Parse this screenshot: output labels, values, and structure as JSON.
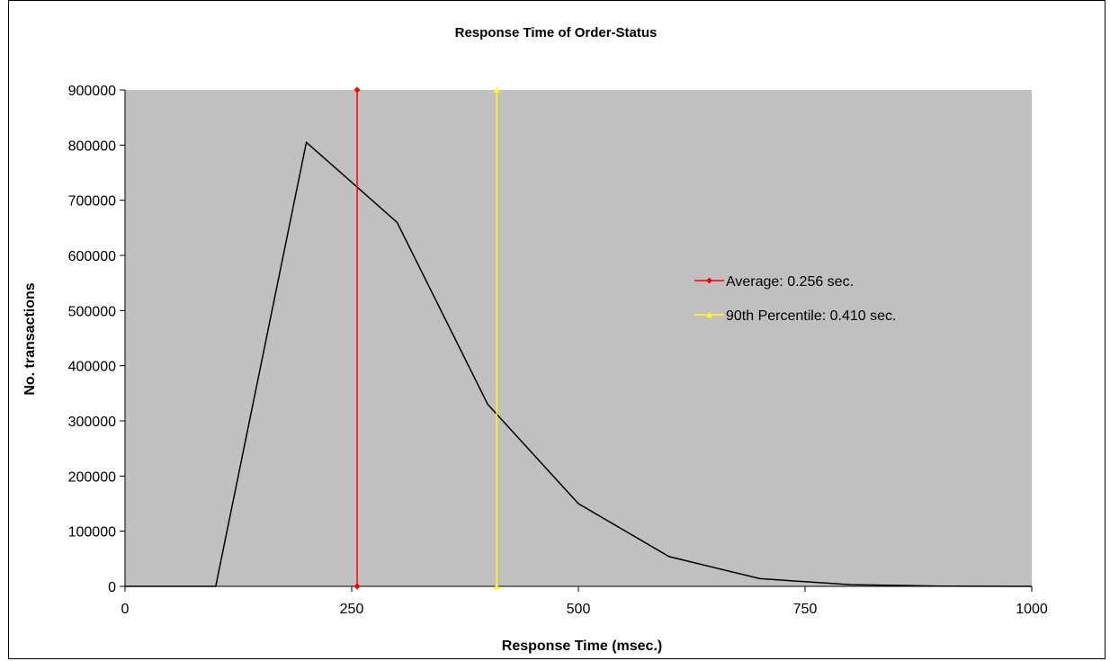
{
  "chart_data": {
    "type": "line",
    "title": "Response Time of Order-Status",
    "xlabel": "Response Time (msec.)",
    "ylabel": "No. transactions",
    "xlim": [
      0,
      1000
    ],
    "ylim": [
      0,
      900000
    ],
    "x_ticks": [
      "0",
      "250",
      "500",
      "750",
      "1000"
    ],
    "y_ticks": [
      "0",
      "100000",
      "200000",
      "300000",
      "400000",
      "500000",
      "600000",
      "700000",
      "800000",
      "900000"
    ],
    "grid": false,
    "plot_background": "#c0c0c0",
    "legend_position": "right",
    "series": [
      {
        "color": "#000000",
        "x": [
          0,
          100,
          200,
          300,
          400,
          500,
          600,
          700,
          800,
          900,
          1000
        ],
        "y": [
          0,
          0,
          805000,
          660000,
          330000,
          150000,
          54000,
          14000,
          3000,
          500,
          0
        ]
      },
      {
        "name": "Average: 0.256 sec.",
        "color": "#ff0000",
        "marker": "diamond",
        "x": [
          256,
          256
        ],
        "y": [
          0,
          900000
        ]
      },
      {
        "name": "90th Percentile: 0.410 sec.",
        "color": "#ffff00",
        "marker": "triangle",
        "x": [
          410,
          410
        ],
        "y": [
          0,
          900000
        ]
      }
    ]
  }
}
